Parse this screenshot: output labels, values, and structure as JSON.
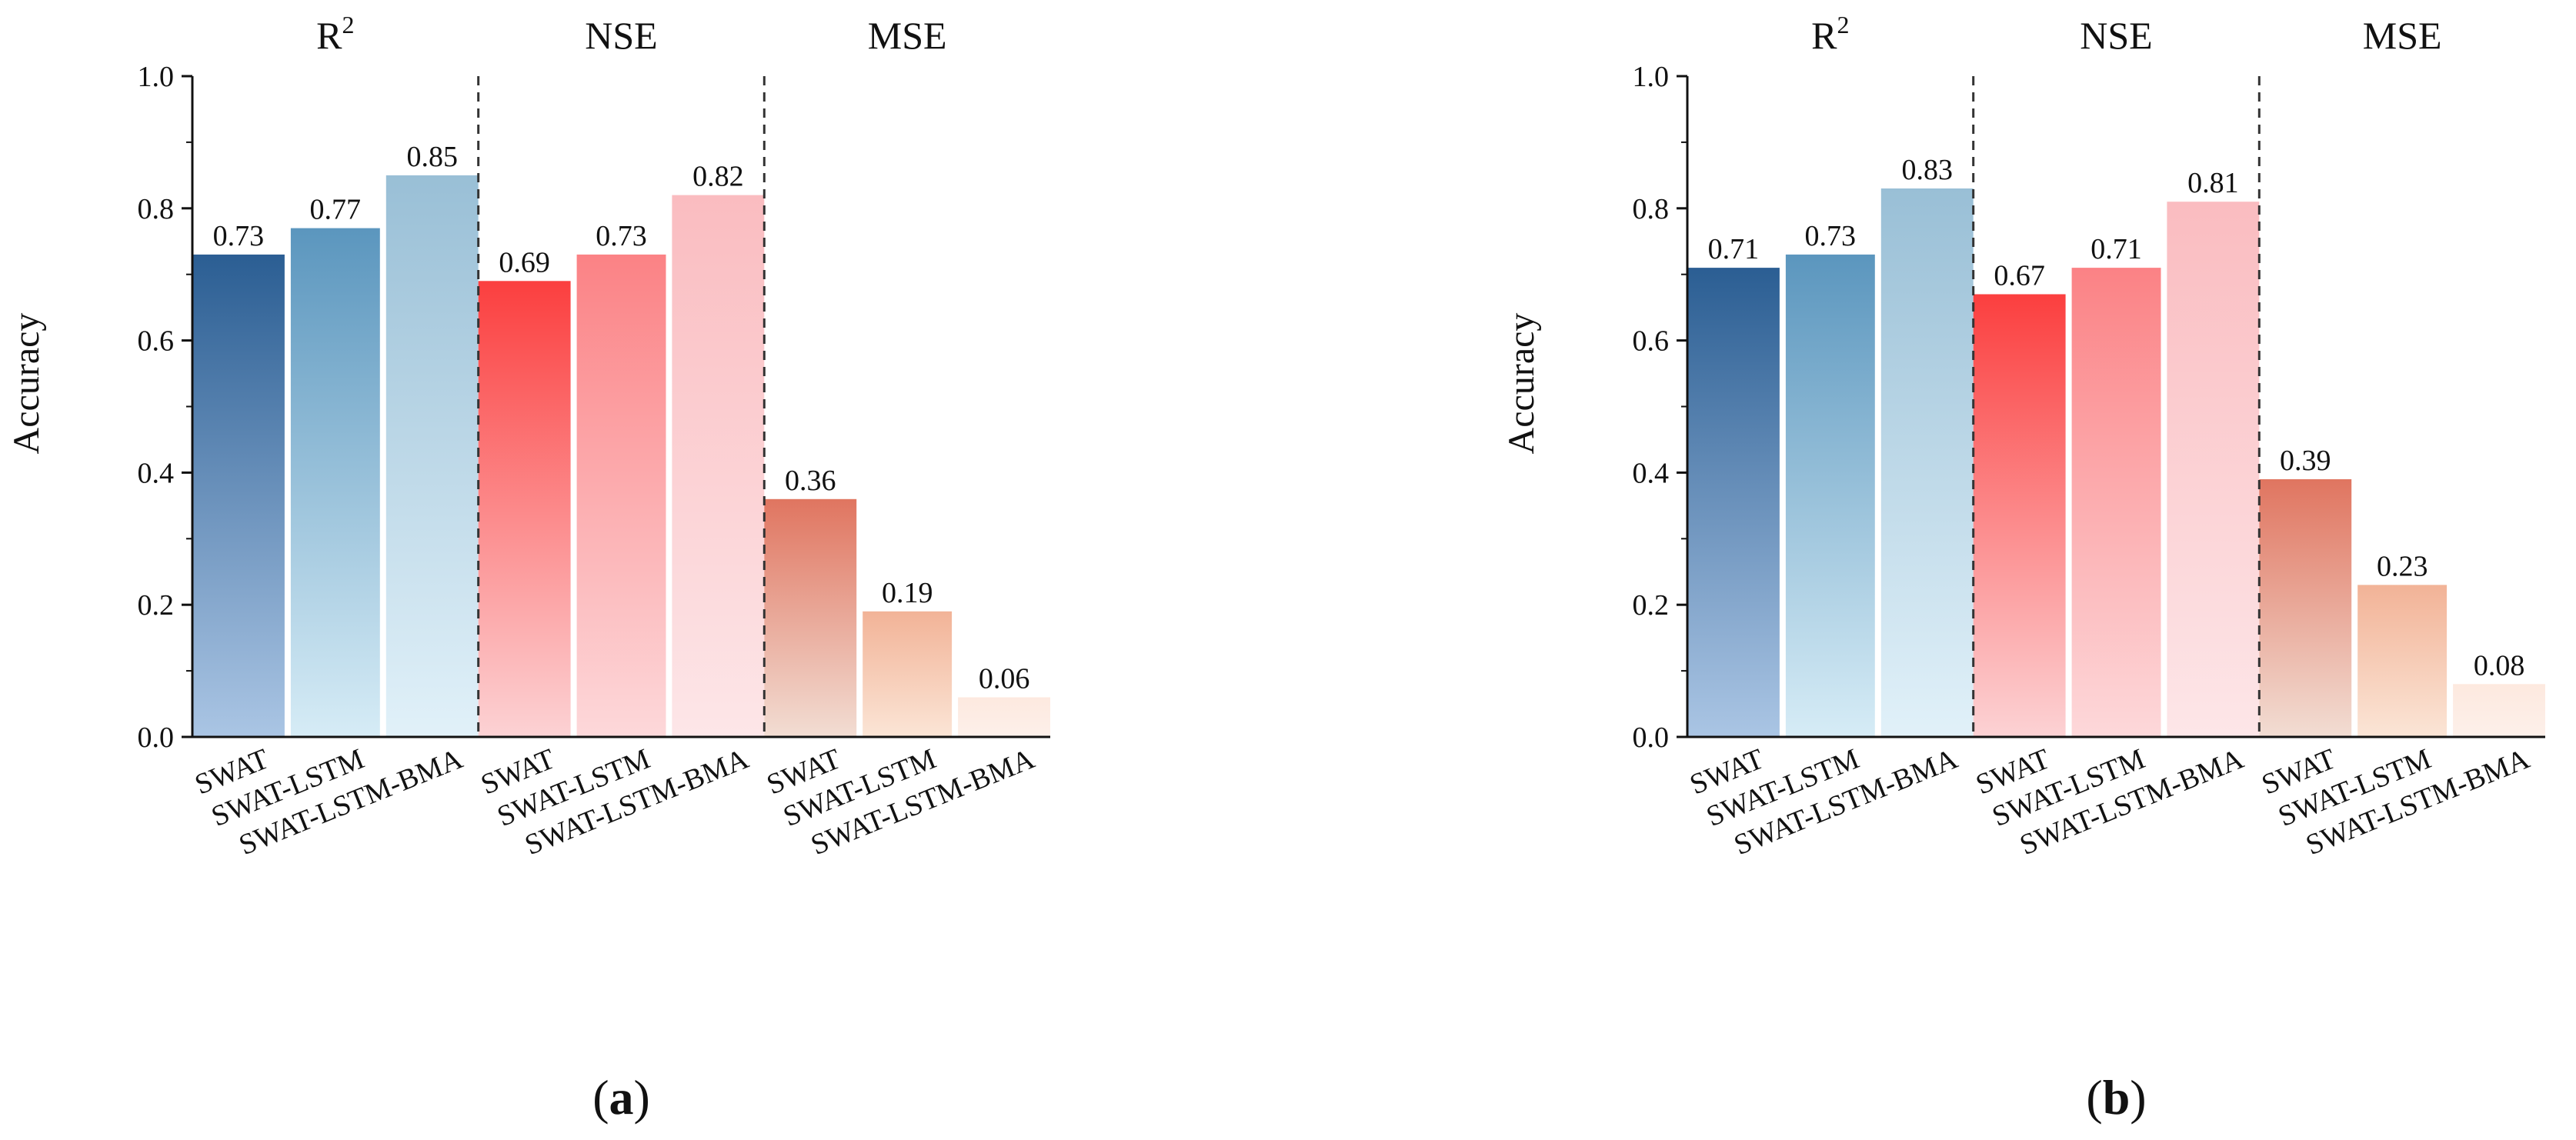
{
  "chart_data": [
    {
      "type": "bar",
      "panel_label": "a",
      "ylabel": "Accuracy",
      "ylim": [
        0,
        1.0
      ],
      "yticks": [
        "0.0",
        "0.2",
        "0.4",
        "0.6",
        "0.8",
        "1.0"
      ],
      "groups": [
        {
          "label": "R",
          "superscript": "2",
          "categories": [
            "SWAT",
            "SWAT-LSTM",
            "SWAT-LSTM-BMA"
          ],
          "values": [
            0.73,
            0.77,
            0.85
          ],
          "value_labels": [
            "0.73",
            "0.77",
            "0.85"
          ],
          "palette": "blue"
        },
        {
          "label": "NSE",
          "superscript": "",
          "categories": [
            "SWAT",
            "SWAT-LSTM",
            "SWAT-LSTM-BMA"
          ],
          "values": [
            0.69,
            0.73,
            0.82
          ],
          "value_labels": [
            "0.69",
            "0.73",
            "0.82"
          ],
          "palette": "red"
        },
        {
          "label": "MSE",
          "superscript": "",
          "categories": [
            "SWAT",
            "SWAT-LSTM",
            "SWAT-LSTM-BMA"
          ],
          "values": [
            0.36,
            0.19,
            0.06
          ],
          "value_labels": [
            "0.36",
            "0.19",
            "0.06"
          ],
          "palette": "salmon"
        }
      ]
    },
    {
      "type": "bar",
      "panel_label": "b",
      "ylabel": "Accuracy",
      "ylim": [
        0,
        1.0
      ],
      "yticks": [
        "0.0",
        "0.2",
        "0.4",
        "0.6",
        "0.8",
        "1.0"
      ],
      "groups": [
        {
          "label": "R",
          "superscript": "2",
          "categories": [
            "SWAT",
            "SWAT-LSTM",
            "SWAT-LSTM-BMA"
          ],
          "values": [
            0.71,
            0.73,
            0.83
          ],
          "value_labels": [
            "0.71",
            "0.73",
            "0.83"
          ],
          "palette": "blue"
        },
        {
          "label": "NSE",
          "superscript": "",
          "categories": [
            "SWAT",
            "SWAT-LSTM",
            "SWAT-LSTM-BMA"
          ],
          "values": [
            0.67,
            0.71,
            0.81
          ],
          "value_labels": [
            "0.67",
            "0.71",
            "0.81"
          ],
          "palette": "red"
        },
        {
          "label": "MSE",
          "superscript": "",
          "categories": [
            "SWAT",
            "SWAT-LSTM",
            "SWAT-LSTM-BMA"
          ],
          "values": [
            0.39,
            0.23,
            0.08
          ],
          "value_labels": [
            "0.39",
            "0.23",
            "0.08"
          ],
          "palette": "salmon"
        }
      ]
    }
  ],
  "colors": {
    "blue": [
      [
        "#2b5e93",
        "#aac5e4"
      ],
      [
        "#5b96be",
        "#d6ecf6"
      ],
      [
        "#99bfd6",
        "#e1f1f9"
      ]
    ],
    "red": [
      [
        "#fb3f3f",
        "#fcd2d4"
      ],
      [
        "#fb8285",
        "#fdd8da"
      ],
      [
        "#fabcc0",
        "#fde6e8"
      ]
    ],
    "salmon": [
      [
        "#e07560",
        "#f2ddd3"
      ],
      [
        "#f2b397",
        "#fbe5d6"
      ],
      [
        "#fde9df",
        "#fdf0ea"
      ]
    ],
    "axis": "#111111",
    "divider": "#333333"
  }
}
